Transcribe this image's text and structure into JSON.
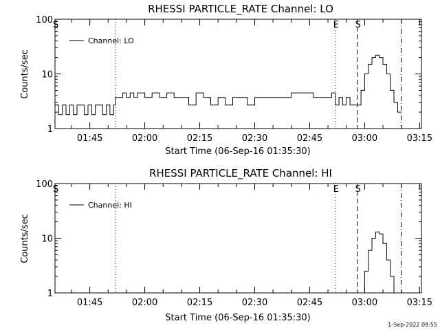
{
  "footer_timestamp": "1-Sep-2022 09:55",
  "chart_data": [
    {
      "type": "line",
      "title": "RHESSI PARTICLE_RATE Channel: LO",
      "xlabel": "Start Time (06-Sep-16 01:35:30)",
      "ylabel": "Counts/sec",
      "y_scale": "log",
      "ylim": [
        1,
        100
      ],
      "xlim": [
        "01:35:30",
        "03:15:30"
      ],
      "x_ticks": [
        "01:45",
        "02:00",
        "02:15",
        "02:30",
        "02:45",
        "03:00",
        "03:15"
      ],
      "y_ticks": [
        "1",
        "10",
        "100"
      ],
      "legend": "Channel: LO",
      "legend_position": "top-left",
      "markers": [
        {
          "label": "S",
          "time": "01:35:30",
          "style": "solid"
        },
        {
          "label": "",
          "time": "01:52:00",
          "style": "dotted"
        },
        {
          "label": "E",
          "time": "02:52:00",
          "style": "dotted"
        },
        {
          "label": "S",
          "time": "02:58:00",
          "style": "dashed"
        },
        {
          "label": "",
          "time": "03:10:00",
          "style": "dashdot"
        }
      ],
      "series": [
        {
          "x": [
            "01:35:30",
            "01:36:30",
            "01:37:30",
            "01:38:30",
            "01:39:30",
            "01:40:30",
            "01:41:30",
            "01:42:30",
            "01:43:30",
            "01:44:30",
            "01:45:30",
            "01:46:30",
            "01:47:30",
            "01:48:30",
            "01:49:30",
            "01:50:30",
            "01:51:30",
            "01:52:00",
            "01:53:00",
            "01:54:00",
            "01:55:00",
            "01:56:00",
            "01:57:00",
            "01:58:00",
            "01:59:00",
            "02:00:00",
            "02:02:00",
            "02:04:00",
            "02:06:00",
            "02:08:00",
            "02:10:00",
            "02:12:00",
            "02:14:00",
            "02:16:00",
            "02:18:00",
            "02:20:00",
            "02:22:00",
            "02:24:00",
            "02:26:00",
            "02:28:00",
            "02:30:00",
            "02:32:00",
            "02:34:00",
            "02:36:00",
            "02:38:00",
            "02:40:00",
            "02:42:00",
            "02:44:00",
            "02:46:00",
            "02:48:00",
            "02:50:00",
            "02:51:00",
            "02:52:00",
            "02:53:00",
            "02:54:00",
            "02:55:00",
            "02:56:00",
            "02:57:00",
            "02:58:00",
            "02:59:00",
            "03:00:00",
            "03:01:00",
            "03:02:00",
            "03:03:00",
            "03:04:00",
            "03:05:00",
            "03:06:00",
            "03:07:00",
            "03:08:00",
            "03:09:00",
            "03:10:00"
          ],
          "y": [
            2.7,
            1.8,
            2.7,
            1.8,
            2.7,
            1.8,
            2.7,
            2.7,
            1.8,
            2.7,
            1.8,
            2.7,
            2.7,
            1.8,
            2.7,
            1.8,
            2.7,
            3.7,
            3.7,
            4.5,
            3.7,
            4.5,
            3.7,
            4.5,
            4.5,
            3.7,
            4.5,
            3.7,
            4.5,
            3.7,
            3.7,
            2.7,
            4.5,
            3.7,
            2.7,
            3.7,
            2.7,
            3.7,
            3.7,
            2.7,
            3.7,
            3.7,
            3.7,
            3.7,
            3.7,
            4.5,
            4.5,
            4.5,
            3.7,
            3.7,
            3.7,
            4.5,
            2.7,
            3.7,
            2.7,
            3.7,
            2.7,
            2.7,
            2.7,
            5,
            10,
            15,
            20,
            22,
            20,
            15,
            10,
            5,
            3,
            2,
            2
          ]
        }
      ]
    },
    {
      "type": "line",
      "title": "RHESSI PARTICLE_RATE Channel: HI",
      "xlabel": "Start Time (06-Sep-16 01:35:30)",
      "ylabel": "Counts/sec",
      "y_scale": "log",
      "ylim": [
        1,
        100
      ],
      "xlim": [
        "01:35:30",
        "03:15:30"
      ],
      "x_ticks": [
        "01:45",
        "02:00",
        "02:15",
        "02:30",
        "02:45",
        "03:00",
        "03:15"
      ],
      "y_ticks": [
        "1",
        "10",
        "100"
      ],
      "legend": "Channel: HI",
      "legend_position": "top-left",
      "markers": [
        {
          "label": "S",
          "time": "01:35:30",
          "style": "solid"
        },
        {
          "label": "",
          "time": "01:52:00",
          "style": "dotted"
        },
        {
          "label": "E",
          "time": "02:52:00",
          "style": "dotted"
        },
        {
          "label": "S",
          "time": "02:58:00",
          "style": "dashed"
        },
        {
          "label": "",
          "time": "03:10:00",
          "style": "dashdot"
        }
      ],
      "series": [
        {
          "x": [
            "02:59:00",
            "03:00:00",
            "03:01:00",
            "03:02:00",
            "03:03:00",
            "03:04:00",
            "03:05:00",
            "03:06:00",
            "03:07:00",
            "03:08:00"
          ],
          "y": [
            1.0,
            2.5,
            6,
            10,
            13,
            12,
            8,
            4,
            2,
            1.0
          ]
        }
      ]
    }
  ]
}
